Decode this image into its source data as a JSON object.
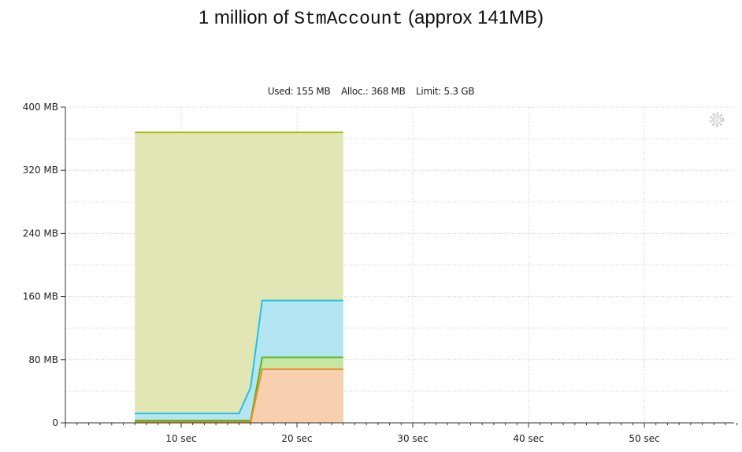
{
  "title": {
    "prefix": "1 million of ",
    "code": "StmAccount",
    "suffix": " (approx 141MB)"
  },
  "stats": {
    "used": "Used: 155 MB",
    "alloc": "Alloc.: 368 MB",
    "limit": "Limit: 5.3 GB"
  },
  "settings_icon": "gear-icon",
  "chart_data": {
    "type": "area",
    "x_unit": "sec",
    "y_unit": "MB",
    "xlim": [
      0,
      58
    ],
    "ylim": [
      0,
      400
    ],
    "x_ticks": [
      10,
      20,
      30,
      40,
      50
    ],
    "x_tick_labels": [
      "10 sec",
      "20 sec",
      "30 sec",
      "40 sec",
      "50 sec"
    ],
    "y_ticks": [
      0,
      80,
      160,
      240,
      320,
      400
    ],
    "y_tick_labels": [
      "0",
      "80 MB",
      "160 MB",
      "240 MB",
      "320 MB",
      "400 MB"
    ],
    "grid": true,
    "series": [
      {
        "color": "#a8bb10",
        "fill": "#e2e6b4",
        "x": [
          6,
          24
        ],
        "values": [
          368,
          368
        ]
      },
      {
        "color": "#27c0e0",
        "fill": "#b3e6f2",
        "x": [
          6,
          15,
          16,
          17,
          24
        ],
        "values": [
          12,
          12,
          45,
          155,
          155
        ]
      },
      {
        "color": "#52b820",
        "fill": "#c6e6a4",
        "x": [
          6,
          16,
          17,
          24
        ],
        "values": [
          3,
          3,
          83,
          83
        ]
      },
      {
        "color": "#f08a2a",
        "fill": "#f7d0b0",
        "x": [
          6,
          16,
          17,
          24
        ],
        "values": [
          1,
          1,
          68,
          68
        ]
      }
    ]
  }
}
